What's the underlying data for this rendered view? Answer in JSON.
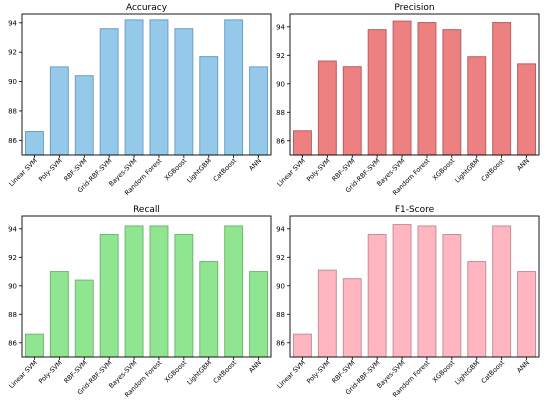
{
  "chart_data": [
    {
      "type": "bar",
      "title": "Accuracy",
      "categories": [
        "Linear SVM",
        "Poly-SVM",
        "RBF-SVM",
        "Grid-RBF-SVM",
        "Bayes-SVM",
        "Random Forest",
        "XGBoost",
        "LightGBM",
        "CatBoost",
        "ANN"
      ],
      "values": [
        86.6,
        91.0,
        90.4,
        93.6,
        94.2,
        94.2,
        93.6,
        91.7,
        94.2,
        91.0
      ],
      "yticks": [
        86,
        88,
        90,
        92,
        94
      ],
      "ylim": [
        85.0,
        94.6
      ],
      "fill": "#94c9ea",
      "edge": "#6f9fc6",
      "xlabel": "",
      "ylabel": ""
    },
    {
      "type": "bar",
      "title": "Precision",
      "categories": [
        "Linear SVM",
        "Poly-SVM",
        "RBF-SVM",
        "Grid-RBF-SVM",
        "Bayes-SVM",
        "Random Forest",
        "XGBoost",
        "LightGBM",
        "CatBoost",
        "ANN"
      ],
      "values": [
        86.7,
        91.6,
        91.2,
        93.8,
        94.4,
        94.3,
        93.8,
        91.9,
        94.3,
        91.4
      ],
      "yticks": [
        86,
        88,
        90,
        92,
        94
      ],
      "ylim": [
        85.0,
        94.9
      ],
      "fill": "#ed8080",
      "edge": "#b86060",
      "xlabel": "",
      "ylabel": ""
    },
    {
      "type": "bar",
      "title": "Recall",
      "categories": [
        "Linear SVM",
        "Poly-SVM",
        "RBF-SVM",
        "Grid-RBF-SVM",
        "Bayes-SVM",
        "Random Forest",
        "XGBoost",
        "LightGBM",
        "CatBoost",
        "ANN"
      ],
      "values": [
        86.6,
        91.0,
        90.4,
        93.6,
        94.2,
        94.2,
        93.6,
        91.7,
        94.2,
        91.0
      ],
      "yticks": [
        86,
        88,
        90,
        92,
        94
      ],
      "ylim": [
        85.0,
        94.9
      ],
      "fill": "#90e690",
      "edge": "#6fb86f",
      "xlabel": "",
      "ylabel": ""
    },
    {
      "type": "bar",
      "title": "F1-Score",
      "categories": [
        "Linear SVM",
        "Poly-SVM",
        "RBF-SVM",
        "Grid-RBF-SVM",
        "Bayes-SVM",
        "Random Forest",
        "XGBoost",
        "LightGBM",
        "CatBoost",
        "ANN"
      ],
      "values": [
        86.6,
        91.1,
        90.5,
        93.6,
        94.3,
        94.2,
        93.6,
        91.7,
        94.2,
        91.0
      ],
      "yticks": [
        86,
        88,
        90,
        92,
        94
      ],
      "ylim": [
        85.0,
        94.9
      ],
      "fill": "#ffb6c1",
      "edge": "#c98d97",
      "xlabel": "",
      "ylabel": ""
    }
  ]
}
